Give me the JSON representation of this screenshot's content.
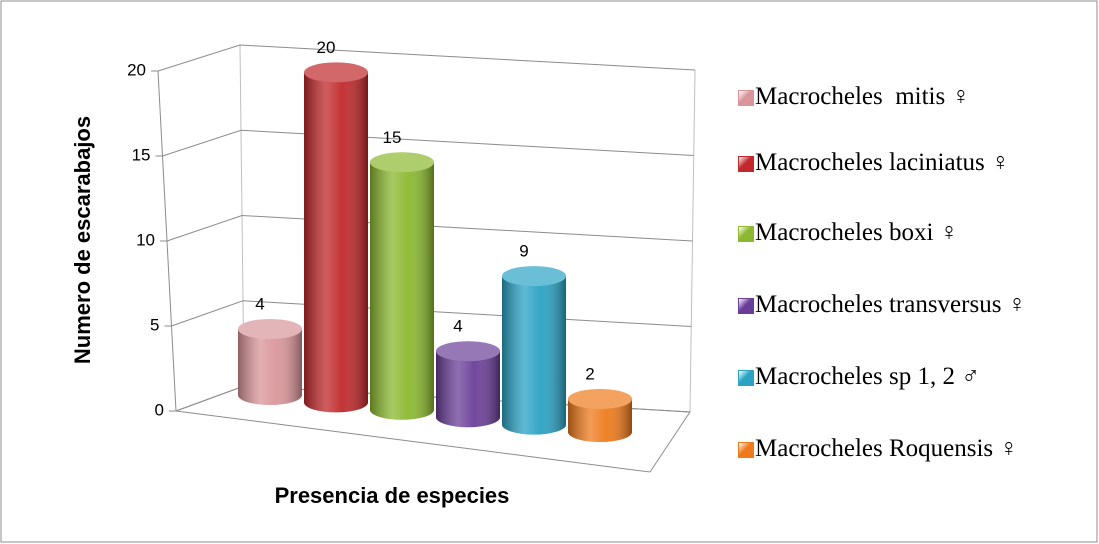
{
  "chart_data": {
    "type": "bar",
    "style": "3d-cylinder",
    "x_label": "Presencia de especies",
    "y_label": "Numero de escarabajos",
    "ylim": [
      0,
      20
    ],
    "yticks": [
      0,
      5,
      10,
      15,
      20
    ],
    "grid": true,
    "series": [
      {
        "name": "Macrocheles  mitis ♀",
        "color": "#d9959a",
        "values": [
          4
        ]
      },
      {
        "name": "Macrocheles laciniatus ♀",
        "color": "#c0282b",
        "values": [
          20
        ]
      },
      {
        "name": "Macrocheles boxi ♀",
        "color": "#8bb82e",
        "values": [
          15
        ]
      },
      {
        "name": "Macrocheles transversus ♀",
        "color": "#6a3e98",
        "values": [
          4
        ]
      },
      {
        "name": "Macrocheles sp 1, 2 ♂",
        "color": "#2aa2c4",
        "values": [
          9
        ]
      },
      {
        "name": "Macrocheles Roquensis ♀",
        "color": "#ee7a1c",
        "values": [
          2
        ]
      }
    ]
  }
}
